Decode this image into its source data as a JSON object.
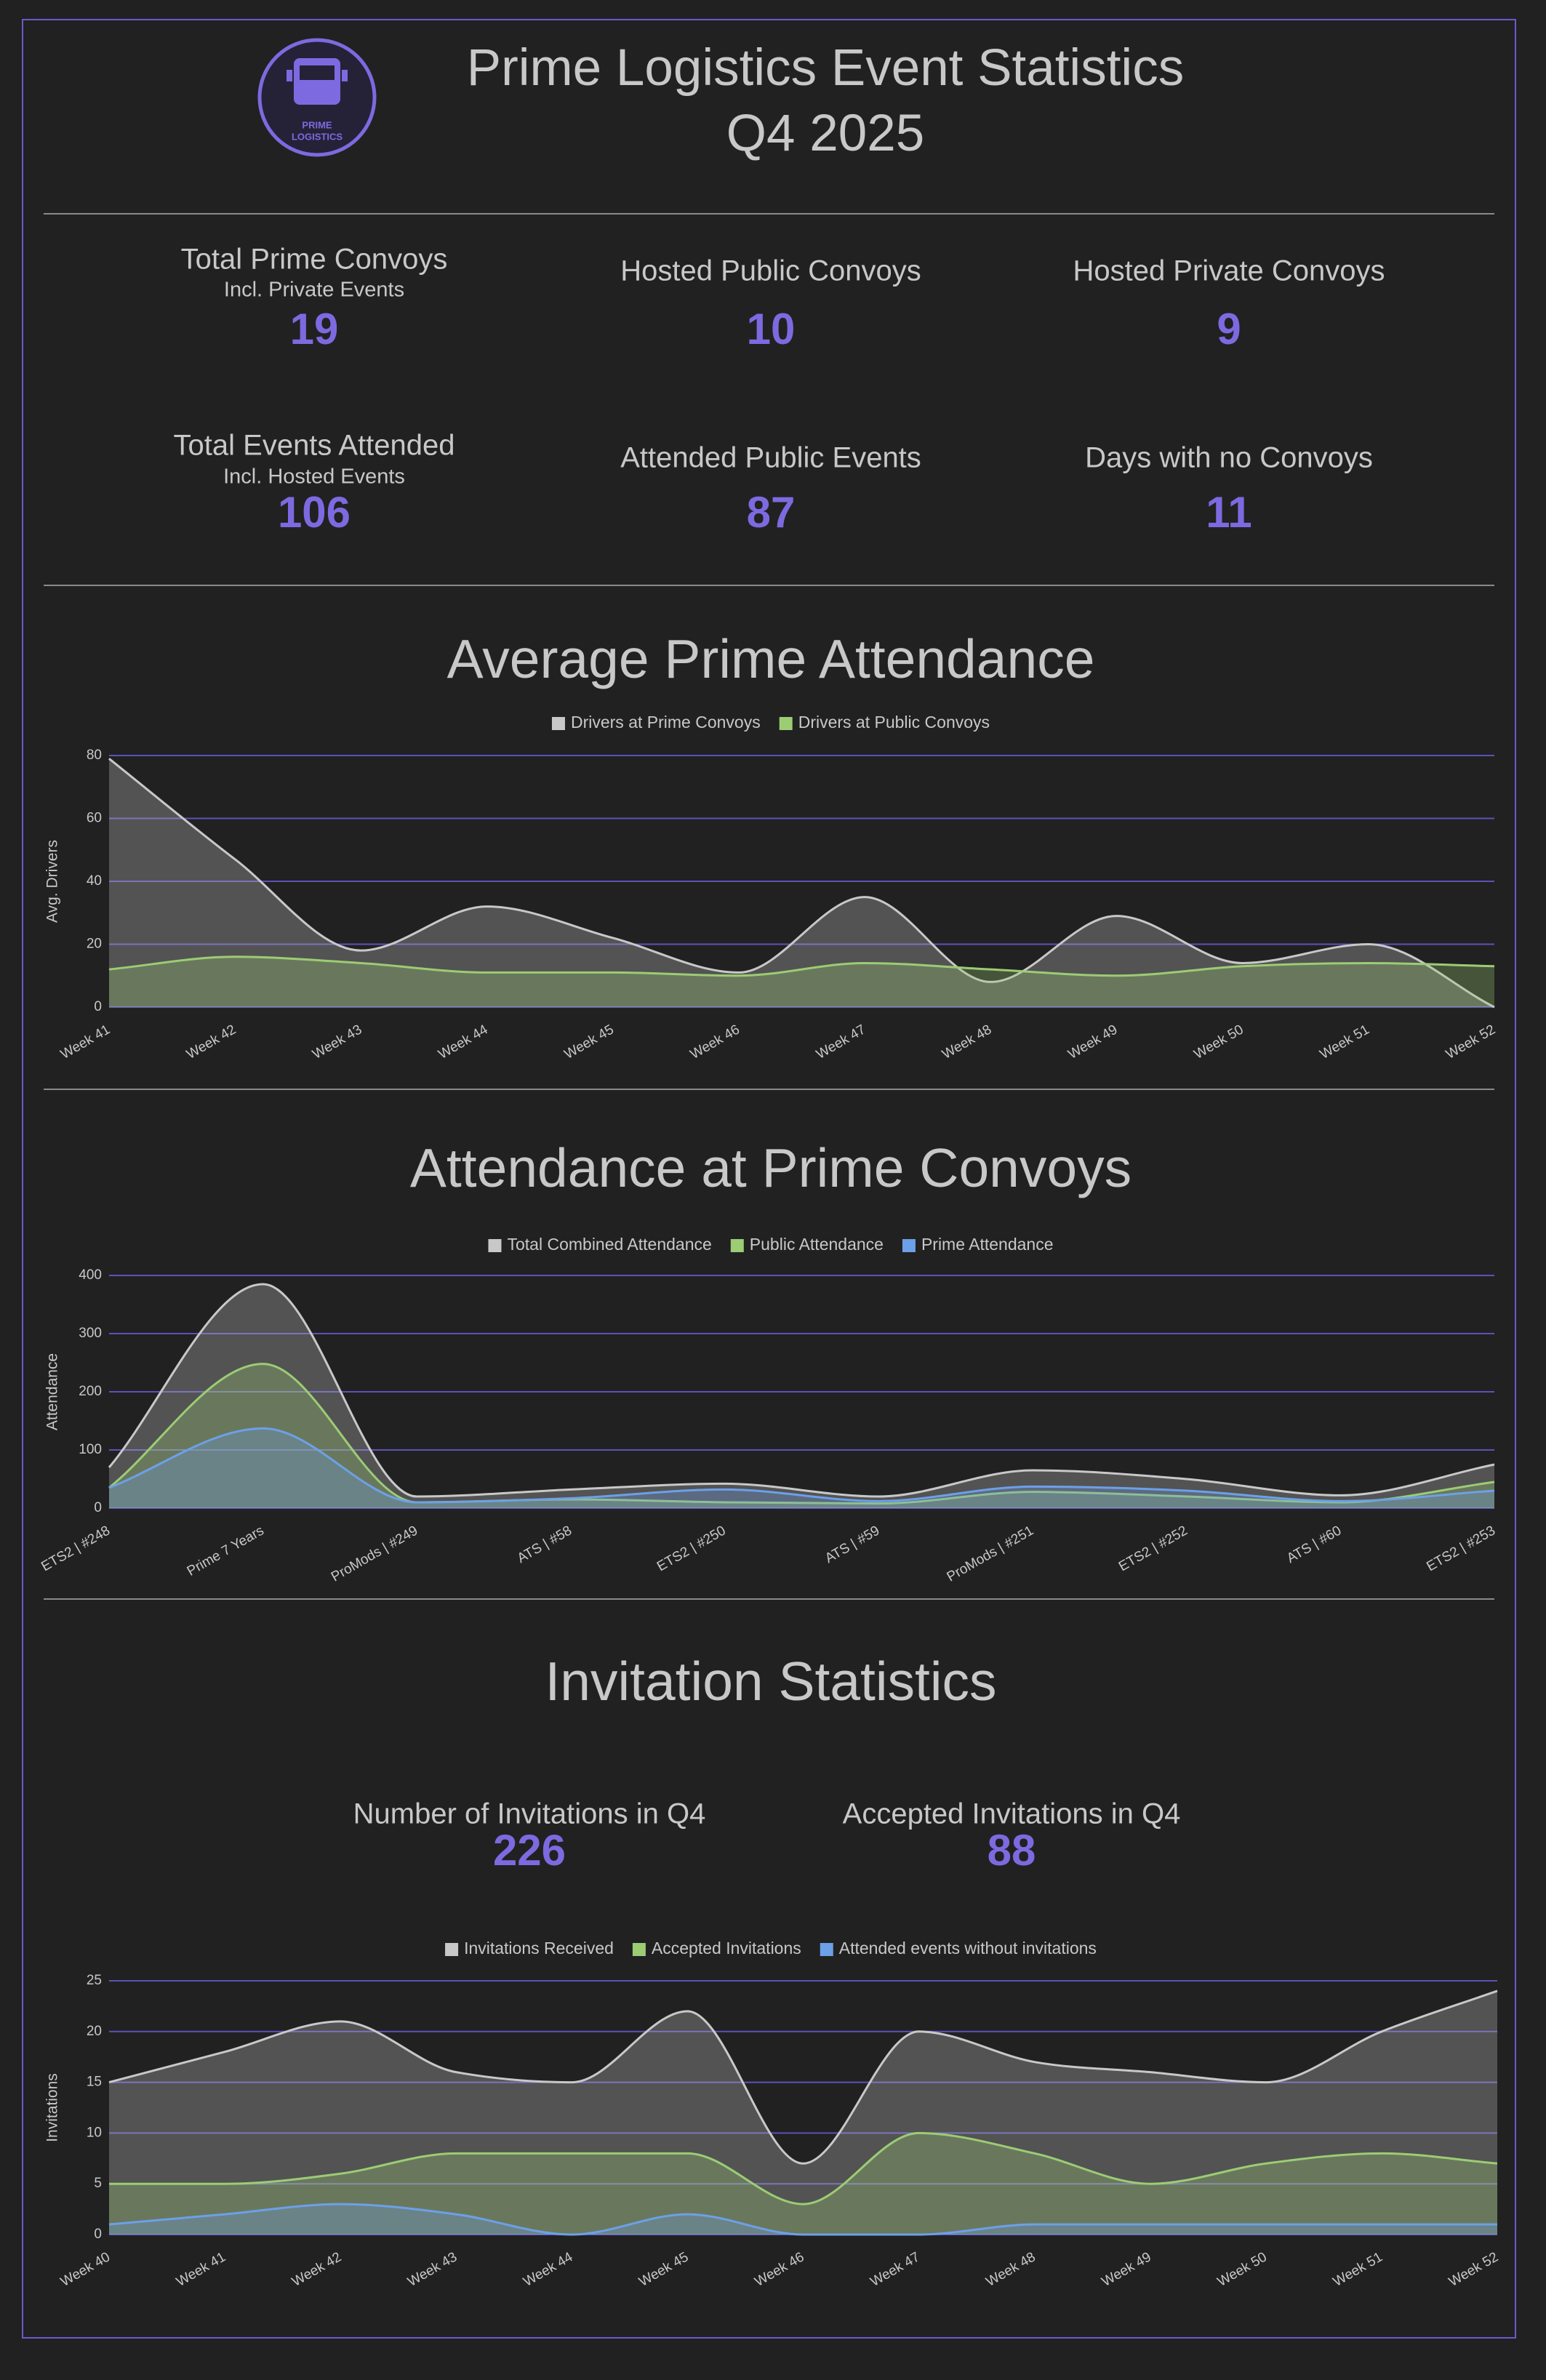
{
  "header": {
    "title": "Prime Logistics Event Statistics",
    "subtitle": "Q4 2025",
    "logo": [
      "PRIME",
      "LOGISTICS"
    ]
  },
  "stats": [
    {
      "label": "Total Prime Convoys",
      "note": "Incl. Private Events",
      "value": 19
    },
    {
      "label": "Hosted Public Convoys",
      "value": 10
    },
    {
      "label": "Hosted Private Convoys",
      "value": 9
    },
    {
      "label": "Total Events Attended",
      "note": "Incl. Hosted Events",
      "value": 106
    },
    {
      "label": "Attended Public Events",
      "value": 87
    },
    {
      "label": "Days with no Convoys",
      "value": 11
    }
  ],
  "invitations": {
    "title": "Invitation Statistics",
    "stats": [
      {
        "label": "Number of Invitations in Q4",
        "value": 226
      },
      {
        "label": "Accepted Invitations in Q4",
        "value": 88
      }
    ]
  },
  "chart_data": [
    {
      "type": "area",
      "title": "Average Prime Attendance",
      "y_label": "Avg. Drivers",
      "categories": [
        "Week 41",
        "Week 42",
        "Week 43",
        "Week 44",
        "Week 45",
        "Week 46",
        "Week 47",
        "Week 48",
        "Week 49",
        "Week 50",
        "Week 51",
        "Week 52"
      ],
      "series": [
        {
          "name": "Drivers at Prime Convoys",
          "color": "#c8c8c8",
          "values": [
            79,
            47,
            18,
            32,
            22,
            11,
            35,
            8,
            29,
            14,
            20,
            0
          ]
        },
        {
          "name": "Drivers at Public Convoys",
          "color": "#9ccc74",
          "values": [
            12,
            16,
            14,
            11,
            11,
            10,
            14,
            12,
            10,
            13,
            14,
            13
          ]
        }
      ],
      "ylim": [
        0,
        80
      ],
      "yticks": [
        0,
        20,
        40,
        60,
        80
      ],
      "grid": true
    },
    {
      "type": "area",
      "title": "Attendance at Prime Convoys",
      "y_label": "Attendance",
      "categories": [
        "ETS2 | #248",
        "Prime 7 Years",
        "ProMods | #249",
        "ATS | #58",
        "ETS2 | #250",
        "ATS | #59",
        "ProMods | #251",
        "ETS2 | #252",
        "ATS | #60",
        "ETS2 | #253"
      ],
      "series": [
        {
          "name": "Total Combined Attendance",
          "color": "#c8c8c8",
          "values": [
            70,
            385,
            20,
            32,
            42,
            20,
            65,
            50,
            22,
            75
          ]
        },
        {
          "name": "Public Attendance",
          "color": "#9ccc74",
          "values": [
            35,
            248,
            10,
            15,
            10,
            8,
            28,
            20,
            10,
            45
          ]
        },
        {
          "name": "Prime Attendance",
          "color": "#6ca0e8",
          "values": [
            35,
            137,
            10,
            17,
            32,
            12,
            37,
            30,
            12,
            30
          ]
        }
      ],
      "ylim": [
        0,
        400
      ],
      "yticks": [
        0,
        100,
        200,
        300,
        400
      ],
      "grid": true
    },
    {
      "type": "area",
      "y_label": "Invitations",
      "categories": [
        "Week 40",
        "Week 41",
        "Week 42",
        "Week 43",
        "Week 44",
        "Week 45",
        "Week 46",
        "Week 47",
        "Week 48",
        "Week 49",
        "Week 50",
        "Week 51",
        "Week 52"
      ],
      "series": [
        {
          "name": "Invitations Received",
          "color": "#c8c8c8",
          "values": [
            15,
            18,
            21,
            16,
            15,
            22,
            7,
            20,
            17,
            16,
            15,
            20,
            24
          ]
        },
        {
          "name": "Accepted Invitations",
          "color": "#9ccc74",
          "values": [
            5,
            5,
            6,
            8,
            8,
            8,
            3,
            10,
            8,
            5,
            7,
            8,
            7
          ]
        },
        {
          "name": "Attended events without invitations",
          "color": "#6ca0e8",
          "values": [
            1,
            2,
            3,
            2,
            0,
            2,
            0,
            0,
            1,
            1,
            1,
            1,
            1
          ]
        }
      ],
      "ylim": [
        0,
        25
      ],
      "yticks": [
        0,
        5,
        10,
        15,
        20,
        25
      ],
      "grid": true
    }
  ]
}
